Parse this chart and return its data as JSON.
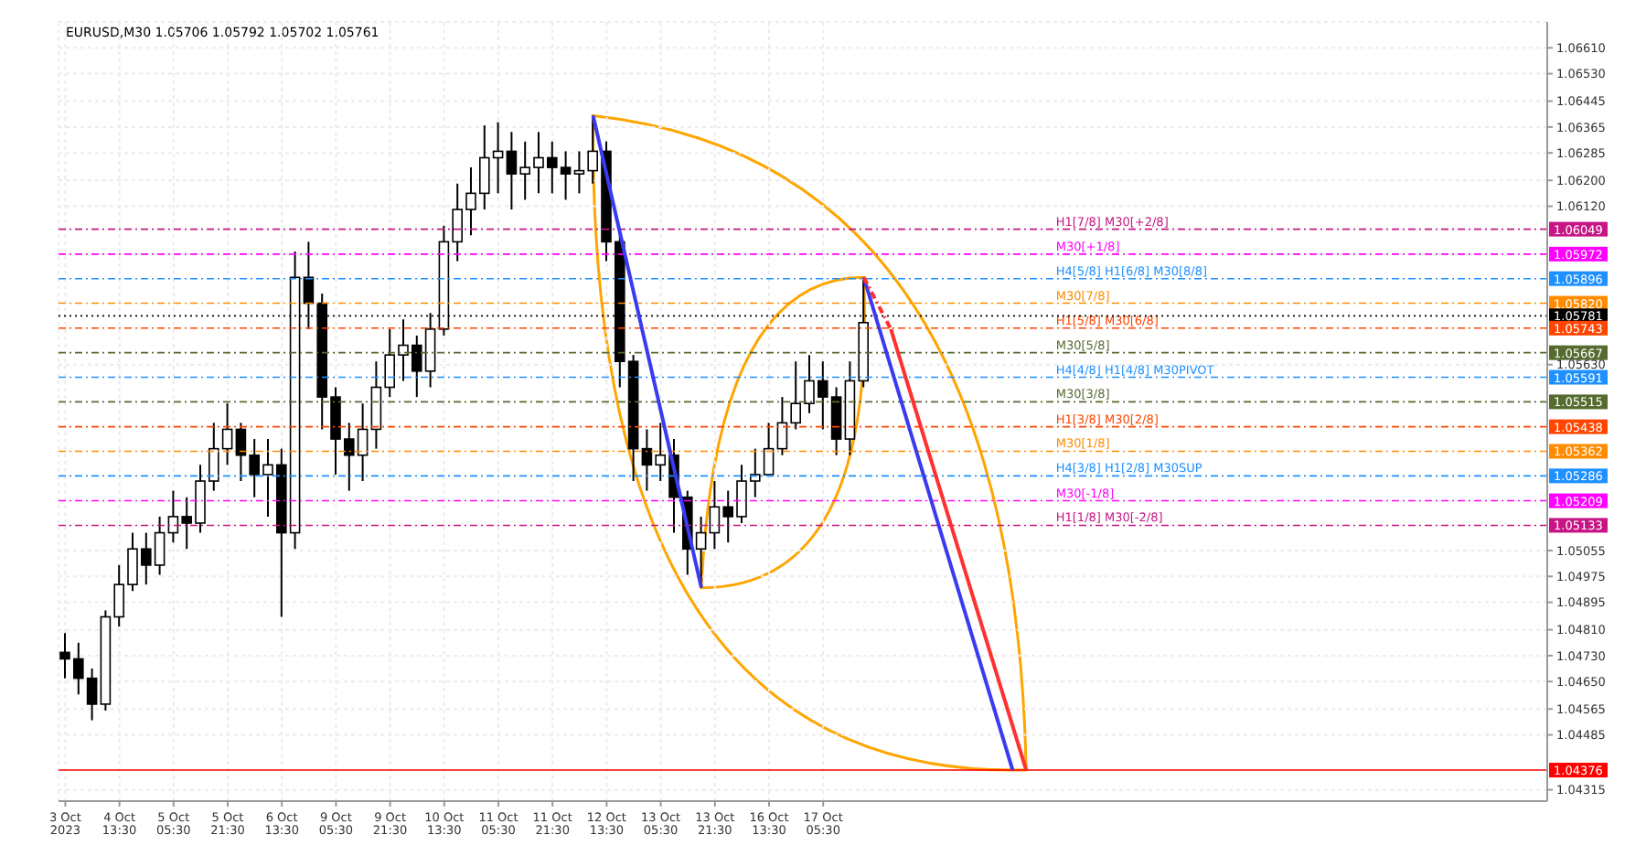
{
  "chart_data": {
    "type": "candlestick",
    "title": "EURUSD,M30  1.05706 1.05792 1.05702 1.05761",
    "color": "#000000",
    "grid": true,
    "categories": [
      "3 Oct 2023",
      null,
      null,
      null,
      "4 Oct 13:30",
      null,
      null,
      null,
      "5 Oct 05:30",
      null,
      null,
      null,
      "5 Oct 21:30",
      null,
      null,
      null,
      "6 Oct 13:30",
      null,
      null,
      null,
      "9 Oct 05:30",
      null,
      null,
      null,
      "9 Oct 21:30",
      null,
      null,
      null,
      "10 Oct 13:30",
      null,
      null,
      null,
      "11 Oct 05:30",
      null,
      null,
      null,
      "11 Oct 21:30",
      null,
      null,
      null,
      "12 Oct 13:30",
      null,
      null,
      null,
      "13 Oct 05:30",
      null,
      null,
      null,
      "13 Oct 21:30",
      null,
      null,
      null,
      "16 Oct 13:30",
      null,
      null,
      null,
      "17 Oct 05:30",
      null,
      null,
      null,
      null,
      null,
      null,
      null,
      null,
      null,
      null,
      null,
      null,
      null,
      null,
      null,
      null,
      null,
      null,
      null,
      null,
      null,
      null,
      null,
      null,
      null,
      null,
      null,
      null,
      null,
      null,
      null,
      null,
      null,
      null,
      null,
      null,
      null,
      null,
      null,
      null,
      null,
      null,
      null,
      null,
      null,
      null,
      null,
      null,
      null,
      null,
      null,
      null,
      null
    ],
    "ohlc": [
      [
        1.0474,
        1.048,
        1.0466,
        1.0472
      ],
      [
        1.0472,
        1.0477,
        1.0461,
        1.0466
      ],
      [
        1.0466,
        1.0469,
        1.0453,
        1.0458
      ],
      [
        1.0458,
        1.0487,
        1.0456,
        1.0485
      ],
      [
        1.0485,
        1.0501,
        1.0482,
        1.0495
      ],
      [
        1.0495,
        1.0511,
        1.0493,
        1.0506
      ],
      [
        1.0506,
        1.0511,
        1.0495,
        1.0501
      ],
      [
        1.0501,
        1.0516,
        1.0498,
        1.0511
      ],
      [
        1.0511,
        1.0524,
        1.0508,
        1.0516
      ],
      [
        1.0516,
        1.0522,
        1.0506,
        1.0514
      ],
      [
        1.0514,
        1.0532,
        1.0511,
        1.0527
      ],
      [
        1.0527,
        1.0545,
        1.0524,
        1.0537
      ],
      [
        1.0537,
        1.0551,
        1.0532,
        1.0543
      ],
      [
        1.0543,
        1.0545,
        1.0527,
        1.0535
      ],
      [
        1.0535,
        1.054,
        1.0522,
        1.0529
      ],
      [
        1.0529,
        1.054,
        1.0516,
        1.0532
      ],
      [
        1.0532,
        1.0537,
        1.0485,
        1.0511
      ],
      [
        1.0511,
        1.0598,
        1.0506,
        1.059
      ],
      [
        1.059,
        1.0601,
        1.0574,
        1.0582
      ],
      [
        1.0582,
        1.0585,
        1.0543,
        1.0553
      ],
      [
        1.0553,
        1.0556,
        1.0529,
        1.054
      ],
      [
        1.054,
        1.0545,
        1.0524,
        1.0535
      ],
      [
        1.0535,
        1.0551,
        1.0527,
        1.0543
      ],
      [
        1.0543,
        1.0564,
        1.0537,
        1.0556
      ],
      [
        1.0556,
        1.0574,
        1.0553,
        1.0566
      ],
      [
        1.0566,
        1.0577,
        1.0558,
        1.0569
      ],
      [
        1.0569,
        1.0572,
        1.0553,
        1.0561
      ],
      [
        1.0561,
        1.0579,
        1.0556,
        1.0574
      ],
      [
        1.0574,
        1.0606,
        1.0572,
        1.0601
      ],
      [
        1.0601,
        1.0619,
        1.0595,
        1.0611
      ],
      [
        1.0611,
        1.0624,
        1.0603,
        1.0616
      ],
      [
        1.0616,
        1.0637,
        1.0611,
        1.0627
      ],
      [
        1.0627,
        1.0638,
        1.0616,
        1.0629
      ],
      [
        1.0629,
        1.0635,
        1.0611,
        1.0622
      ],
      [
        1.0622,
        1.0632,
        1.0614,
        1.0624
      ],
      [
        1.0624,
        1.0635,
        1.0616,
        1.0627
      ],
      [
        1.0627,
        1.0632,
        1.0616,
        1.0624
      ],
      [
        1.0624,
        1.0629,
        1.0614,
        1.0622
      ],
      [
        1.0622,
        1.0629,
        1.0616,
        1.0623
      ],
      [
        1.0623,
        1.064,
        1.0619,
        1.0629
      ],
      [
        1.0629,
        1.0632,
        1.0595,
        1.0601
      ],
      [
        1.0601,
        1.0603,
        1.0556,
        1.0564
      ],
      [
        1.0564,
        1.0566,
        1.0527,
        1.0537
      ],
      [
        1.0537,
        1.0543,
        1.0524,
        1.0532
      ],
      [
        1.0532,
        1.0545,
        1.0527,
        1.0535
      ],
      [
        1.0535,
        1.054,
        1.0511,
        1.0522
      ],
      [
        1.0522,
        1.0524,
        1.0498,
        1.0506
      ],
      [
        1.0506,
        1.0516,
        1.0494,
        1.0511
      ],
      [
        1.0511,
        1.0527,
        1.0506,
        1.0519
      ],
      [
        1.0519,
        1.0524,
        1.0508,
        1.0516
      ],
      [
        1.0516,
        1.0532,
        1.0514,
        1.0527
      ],
      [
        1.0527,
        1.0537,
        1.0522,
        1.0529
      ],
      [
        1.0529,
        1.0545,
        1.0529,
        1.0537
      ],
      [
        1.0537,
        1.0553,
        1.0535,
        1.0545
      ],
      [
        1.0545,
        1.0564,
        1.0543,
        1.0551
      ],
      [
        1.0551,
        1.0566,
        1.0548,
        1.0558
      ],
      [
        1.0558,
        1.0564,
        1.0543,
        1.0553
      ],
      [
        1.0553,
        1.0556,
        1.0535,
        1.054
      ],
      [
        1.054,
        1.0564,
        1.0535,
        1.0558
      ],
      [
        1.0558,
        1.059,
        1.0556,
        1.0576
      ],
      null,
      null,
      null,
      null,
      null,
      null,
      null,
      null,
      null,
      null,
      null,
      null,
      null,
      null,
      null,
      null,
      null,
      null,
      null,
      null,
      null,
      null,
      null,
      null,
      null,
      null,
      null,
      null,
      null,
      null,
      null,
      null,
      null,
      null,
      null,
      null,
      null,
      null,
      null,
      null,
      null,
      null,
      null,
      null,
      null,
      null,
      null,
      null,
      null,
      null
    ],
    "series": [
      {
        "type": "line",
        "color": "#3a3af0",
        "line_style": "solid",
        "values": [
          null,
          null,
          null,
          null,
          null,
          null,
          null,
          null,
          null,
          null,
          null,
          null,
          null,
          null,
          null,
          null,
          null,
          null,
          null,
          null,
          null,
          null,
          null,
          null,
          null,
          null,
          null,
          null,
          null,
          null,
          null,
          null,
          null,
          null,
          null,
          null,
          null,
          null,
          null,
          1.064,
          null,
          null,
          null,
          null,
          null,
          null,
          null,
          1.0494,
          null,
          null,
          null,
          null,
          null,
          null,
          null,
          null,
          null,
          null,
          null,
          null,
          null,
          null,
          null,
          null,
          null,
          null,
          null,
          null,
          null,
          null,
          null,
          null,
          null,
          null,
          null,
          null,
          null,
          null,
          null,
          null,
          null,
          null,
          null,
          null,
          null,
          null,
          null,
          null,
          null,
          null,
          null,
          null,
          null,
          null,
          null,
          null,
          null,
          null,
          null,
          null,
          null,
          null,
          null,
          null,
          null,
          null,
          null,
          null,
          null,
          null
        ]
      },
      {
        "type": "line",
        "color": "#3a3af0",
        "line_style": "solid",
        "values": [
          null,
          null,
          null,
          null,
          null,
          null,
          null,
          null,
          null,
          null,
          null,
          null,
          null,
          null,
          null,
          null,
          null,
          null,
          null,
          null,
          null,
          null,
          null,
          null,
          null,
          null,
          null,
          null,
          null,
          null,
          null,
          null,
          null,
          null,
          null,
          null,
          null,
          null,
          null,
          null,
          null,
          null,
          null,
          null,
          null,
          null,
          null,
          null,
          null,
          null,
          null,
          null,
          null,
          null,
          null,
          null,
          null,
          null,
          null,
          1.059,
          null,
          null,
          null,
          null,
          null,
          null,
          null,
          null,
          null,
          null,
          1.04376,
          null,
          null,
          null,
          null,
          null,
          null,
          null,
          null,
          null,
          null,
          null,
          null,
          null,
          null,
          null,
          null,
          null,
          null,
          null,
          null,
          null,
          null,
          null,
          null,
          null,
          null,
          null,
          null,
          null,
          null,
          null,
          null,
          null,
          null,
          null,
          null,
          null,
          null,
          null
        ]
      },
      {
        "type": "line",
        "color": "#ff3030",
        "line_style": "dashed",
        "values": [
          null,
          null,
          null,
          null,
          null,
          null,
          null,
          null,
          null,
          null,
          null,
          null,
          null,
          null,
          null,
          null,
          null,
          null,
          null,
          null,
          null,
          null,
          null,
          null,
          null,
          null,
          null,
          null,
          null,
          null,
          null,
          null,
          null,
          null,
          null,
          null,
          null,
          null,
          null,
          null,
          null,
          null,
          null,
          null,
          null,
          null,
          null,
          null,
          null,
          null,
          null,
          null,
          null,
          null,
          null,
          null,
          null,
          null,
          null,
          1.059,
          null,
          1.0574,
          null,
          null,
          null,
          null,
          null,
          null,
          null,
          null,
          null,
          null,
          null,
          null,
          null,
          null,
          null,
          null,
          null,
          null,
          null,
          null,
          null,
          null,
          null,
          null,
          null,
          null,
          null,
          null,
          null,
          null,
          null,
          null,
          null,
          null,
          null,
          null,
          null,
          null,
          null,
          null,
          null,
          null,
          null,
          null,
          null,
          null,
          null,
          null
        ]
      },
      {
        "type": "line",
        "color": "#ff3030",
        "line_style": "solid",
        "values": [
          null,
          null,
          null,
          null,
          null,
          null,
          null,
          null,
          null,
          null,
          null,
          null,
          null,
          null,
          null,
          null,
          null,
          null,
          null,
          null,
          null,
          null,
          null,
          null,
          null,
          null,
          null,
          null,
          null,
          null,
          null,
          null,
          null,
          null,
          null,
          null,
          null,
          null,
          null,
          null,
          null,
          null,
          null,
          null,
          null,
          null,
          null,
          null,
          null,
          null,
          null,
          null,
          null,
          null,
          null,
          null,
          null,
          null,
          null,
          null,
          null,
          1.0574,
          null,
          null,
          null,
          null,
          null,
          null,
          null,
          null,
          null,
          1.04376,
          null,
          null,
          null,
          null,
          null,
          null,
          null,
          null,
          null,
          null,
          null,
          null,
          null,
          null,
          null,
          null,
          null,
          null,
          null,
          null,
          null,
          null,
          null,
          null,
          null,
          null,
          null,
          null,
          null,
          null,
          null,
          null,
          null,
          null,
          null,
          null,
          null,
          null
        ]
      }
    ],
    "ylim": [
      1.0428,
      1.0669
    ],
    "yticks": [
      {
        "value": 1.0661,
        "label": "1.06610"
      },
      {
        "value": 1.0653,
        "label": "1.06530"
      },
      1.06445,
      1.06365,
      1.06285,
      {
        "value": 1.062,
        "label": "1.06200"
      },
      {
        "value": 1.0612,
        "label": "1.06120"
      },
      {
        "value": 1.0563,
        "label": "1.05630"
      },
      1.05055,
      1.04975,
      1.04895,
      {
        "value": 1.0481,
        "label": "1.04810"
      },
      {
        "value": 1.0473,
        "label": "1.04730"
      },
      {
        "value": 1.0465,
        "label": "1.04650"
      },
      1.04565,
      1.04485,
      1.04315
    ],
    "ref_lines": [
      {
        "axis": "y",
        "value": 1.06049,
        "label": "1.06049",
        "color": "#c71585",
        "line_style": "dashed"
      },
      {
        "axis": "y",
        "value": 1.05972,
        "label": "1.05972",
        "color": "#ff00ff",
        "line_style": "dashed"
      },
      {
        "axis": "y",
        "value": 1.05896,
        "label": "1.05896",
        "color": "#1e90ff",
        "line_style": "dashed"
      },
      {
        "axis": "y",
        "value": 1.0582,
        "label": "1.05820",
        "color": "#ff8c00",
        "line_style": "dashed"
      },
      {
        "axis": "y",
        "value": 1.05781,
        "label": "1.05781",
        "color": "#000000",
        "line_style": "dotted"
      },
      {
        "axis": "y",
        "value": 1.05743,
        "label": "1.05743",
        "color": "#ff4500",
        "line_style": "dashed"
      },
      {
        "axis": "y",
        "value": 1.05667,
        "label": "1.05667",
        "color": "#556b2f",
        "line_style": "dashed"
      },
      {
        "axis": "y",
        "value": 1.05591,
        "label": "1.05591",
        "color": "#1e90ff",
        "line_style": "dashed"
      },
      {
        "axis": "y",
        "value": 1.05515,
        "label": "1.05515",
        "color": "#556b2f",
        "line_style": "dashed"
      },
      {
        "axis": "y",
        "value": 1.05438,
        "label": "1.05438",
        "color": "#ff4500",
        "line_style": "dashed"
      },
      {
        "axis": "y",
        "value": 1.05362,
        "label": "1.05362",
        "color": "#ff8c00",
        "line_style": "dashed"
      },
      {
        "axis": "y",
        "value": 1.05286,
        "label": "1.05286",
        "color": "#1e90ff",
        "line_style": "dashed"
      },
      {
        "axis": "y",
        "value": 1.05209,
        "label": "1.05209",
        "color": "#ff00ff",
        "line_style": "dashed"
      },
      {
        "axis": "y",
        "value": 1.05133,
        "label": "1.05133",
        "color": "#c71585",
        "line_style": "dashed"
      },
      {
        "axis": "y",
        "value": 1.04376,
        "label": "1.04376",
        "color": "#ff0000",
        "line_style": "solid"
      }
    ],
    "annotations": [
      {
        "text": "H1[7/8] M30[+2/8]",
        "y": 1.06049
      },
      {
        "text": "M30[+1/8]",
        "y": 1.05972
      },
      {
        "text": "H4[5/8] H1[6/8] M30[8/8]",
        "y": 1.05896
      },
      {
        "text": "M30[7/8]",
        "y": 1.0582
      },
      {
        "text": "H1[5/8] M30[6/8]",
        "y": 1.05743
      },
      {
        "text": "M30[5/8]",
        "y": 1.05667
      },
      {
        "text": "H4[4/8] H1[4/8] M30PIVOT",
        "y": 1.05591
      },
      {
        "text": "M30[3/8]",
        "y": 1.05515
      },
      {
        "text": "H1[3/8] M30[2/8]",
        "y": 1.05438
      },
      {
        "text": "M30[1/8]",
        "y": 1.05362
      },
      {
        "text": "H4[3/8] H1[2/8] M30SUP",
        "y": 1.05286
      },
      {
        "text": "M30[-1/8]",
        "y": 1.05209
      },
      {
        "text": "H1[1/8] M30[-2/8]",
        "y": 1.05133
      }
    ]
  }
}
